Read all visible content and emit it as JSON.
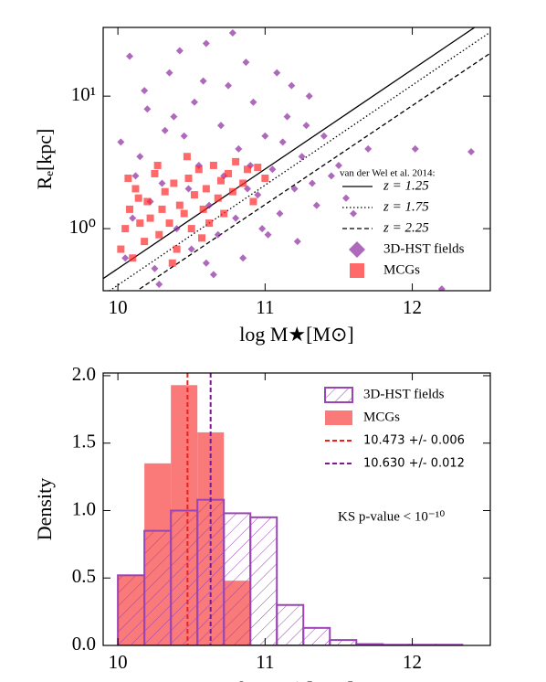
{
  "chart_data": [
    {
      "type": "scatter",
      "ylog": true,
      "xlabel": "log M★[M⊙]",
      "ylabel": "Rₑ[kpc]",
      "xlim": [
        9.9,
        12.53
      ],
      "xticks": [
        10,
        11,
        12
      ],
      "ylim": [
        0.34,
        33
      ],
      "yticks": [
        {
          "value": 1,
          "label": "10⁰"
        },
        {
          "value": 10,
          "label": "10¹"
        }
      ],
      "legend_title": "van der Wel et al. 2014:",
      "series": [
        {
          "name": "z = 1.25",
          "kind": "line",
          "style": "solid",
          "color": "#000000",
          "x": [
            9.9,
            12.53
          ],
          "values": [
            0.42,
            39.7
          ]
        },
        {
          "name": "z = 1.75",
          "kind": "line",
          "style": "dotted",
          "color": "#000000",
          "x": [
            9.9,
            12.53
          ],
          "values": [
            0.315,
            30.4
          ]
        },
        {
          "name": "z = 2.25",
          "kind": "line",
          "style": "dashed",
          "color": "#000000",
          "x": [
            9.9,
            12.53
          ],
          "values": [
            0.229,
            21.1
          ]
        },
        {
          "name": "3D-HST fields",
          "kind": "points",
          "marker": "diamond",
          "color": "#8b2a9f",
          "x": [
            10.05,
            10.1,
            10.15,
            10.2,
            10.25,
            10.3,
            10.35,
            10.4,
            10.45,
            10.5,
            10.55,
            10.6,
            10.62,
            10.65,
            10.7,
            10.72,
            10.75,
            10.8,
            10.82,
            10.85,
            10.9,
            10.92,
            10.95,
            11.0,
            11.02,
            11.05,
            11.08,
            11.1,
            11.12,
            11.15,
            11.2,
            11.22,
            11.25,
            11.3,
            11.35,
            11.4,
            11.45,
            11.5,
            11.6,
            11.7,
            12.2,
            12.4,
            12.02,
            10.08,
            10.18,
            10.28,
            10.38,
            10.48,
            10.58,
            10.68,
            10.78,
            10.88,
            10.98,
            11.18,
            11.28,
            10.12,
            10.22,
            10.42,
            10.52,
            10.02,
            10.32,
            10.87,
            10.6,
            11.32,
            11.55
          ],
          "values": [
            0.6,
            1.2,
            3.5,
            8,
            0.5,
            2.2,
            15,
            1.0,
            5,
            0.7,
            3,
            25,
            1.5,
            0.45,
            6,
            2.5,
            12,
            1.2,
            4,
            0.6,
            3,
            9,
            1.8,
            5,
            0.9,
            2.8,
            15,
            1.3,
            4.5,
            7,
            2,
            0.8,
            3.5,
            10,
            1.5,
            5,
            2.5,
            3,
            1.3,
            4,
            0.35,
            3.8,
            4,
            20,
            11,
            0.38,
            7,
            2,
            13,
            0.9,
            30,
            2,
            1.0,
            12,
            6,
            2.5,
            1.6,
            22,
            9,
            4.5,
            5.5,
            18,
            0.55,
            2.2,
            1.7
          ]
        },
        {
          "name": "MCGs",
          "kind": "points",
          "marker": "square",
          "color": "#ff2a2a",
          "x": [
            10.02,
            10.05,
            10.08,
            10.1,
            10.12,
            10.15,
            10.18,
            10.2,
            10.22,
            10.25,
            10.28,
            10.3,
            10.32,
            10.35,
            10.38,
            10.4,
            10.42,
            10.45,
            10.48,
            10.5,
            10.52,
            10.55,
            10.58,
            10.6,
            10.62,
            10.65,
            10.68,
            10.7,
            10.72,
            10.75,
            10.78,
            10.8,
            10.85,
            10.88,
            10.92,
            10.95,
            11.0,
            10.07,
            10.27,
            10.37,
            10.47,
            10.57,
            10.14
          ],
          "values": [
            0.7,
            1.0,
            1.4,
            0.6,
            2.0,
            1.1,
            0.8,
            1.6,
            1.2,
            2.6,
            0.9,
            1.4,
            1.9,
            1.1,
            2.2,
            0.7,
            1.5,
            1.3,
            2.4,
            1.0,
            1.8,
            2.8,
            1.4,
            2.0,
            1.1,
            3.0,
            1.7,
            2.3,
            1.3,
            2.6,
            1.9,
            3.2,
            2.2,
            2.8,
            1.6,
            2.9,
            2.4,
            2.4,
            3.0,
            0.55,
            3.5,
            0.85,
            1.7
          ]
        }
      ]
    },
    {
      "type": "histogram",
      "xlabel": "log M★[M⊙]",
      "ylabel": "Density",
      "annotation": "KS p-value < 10⁻¹⁰",
      "xlim": [
        9.9,
        12.53
      ],
      "xticks": [
        10,
        11,
        12
      ],
      "ylim": [
        0,
        2.02
      ],
      "yticks": [
        {
          "value": 0,
          "label": "0.0"
        },
        0.5,
        {
          "value": 1,
          "label": "1.0"
        },
        1.5,
        {
          "value": 2,
          "label": "2.0"
        }
      ],
      "series": [
        {
          "name": "3D-HST fields",
          "style": "hatched",
          "color": "#9b45b5",
          "bins": [
            10.0,
            10.18,
            10.36,
            10.54,
            10.72,
            10.9,
            11.08,
            11.26,
            11.44,
            11.62,
            11.8,
            11.98,
            12.16,
            12.34
          ],
          "values": [
            0.52,
            0.85,
            1.0,
            1.08,
            0.98,
            0.95,
            0.3,
            0.13,
            0.04,
            0.01,
            0.005,
            0.005,
            0.005
          ]
        },
        {
          "name": "MCGs",
          "style": "filled",
          "color": "#fa7a7a",
          "bins": [
            10.0,
            10.18,
            10.36,
            10.54,
            10.72,
            10.9
          ],
          "values": [
            0.52,
            1.35,
            1.93,
            1.58,
            0.48
          ]
        }
      ],
      "vlines": [
        {
          "name": "10.473 +/- 0.006",
          "x": 10.473,
          "color": "#e8231e"
        },
        {
          "name": "10.630 +/- 0.012",
          "x": 10.63,
          "color": "#7a1a8c"
        }
      ]
    }
  ]
}
